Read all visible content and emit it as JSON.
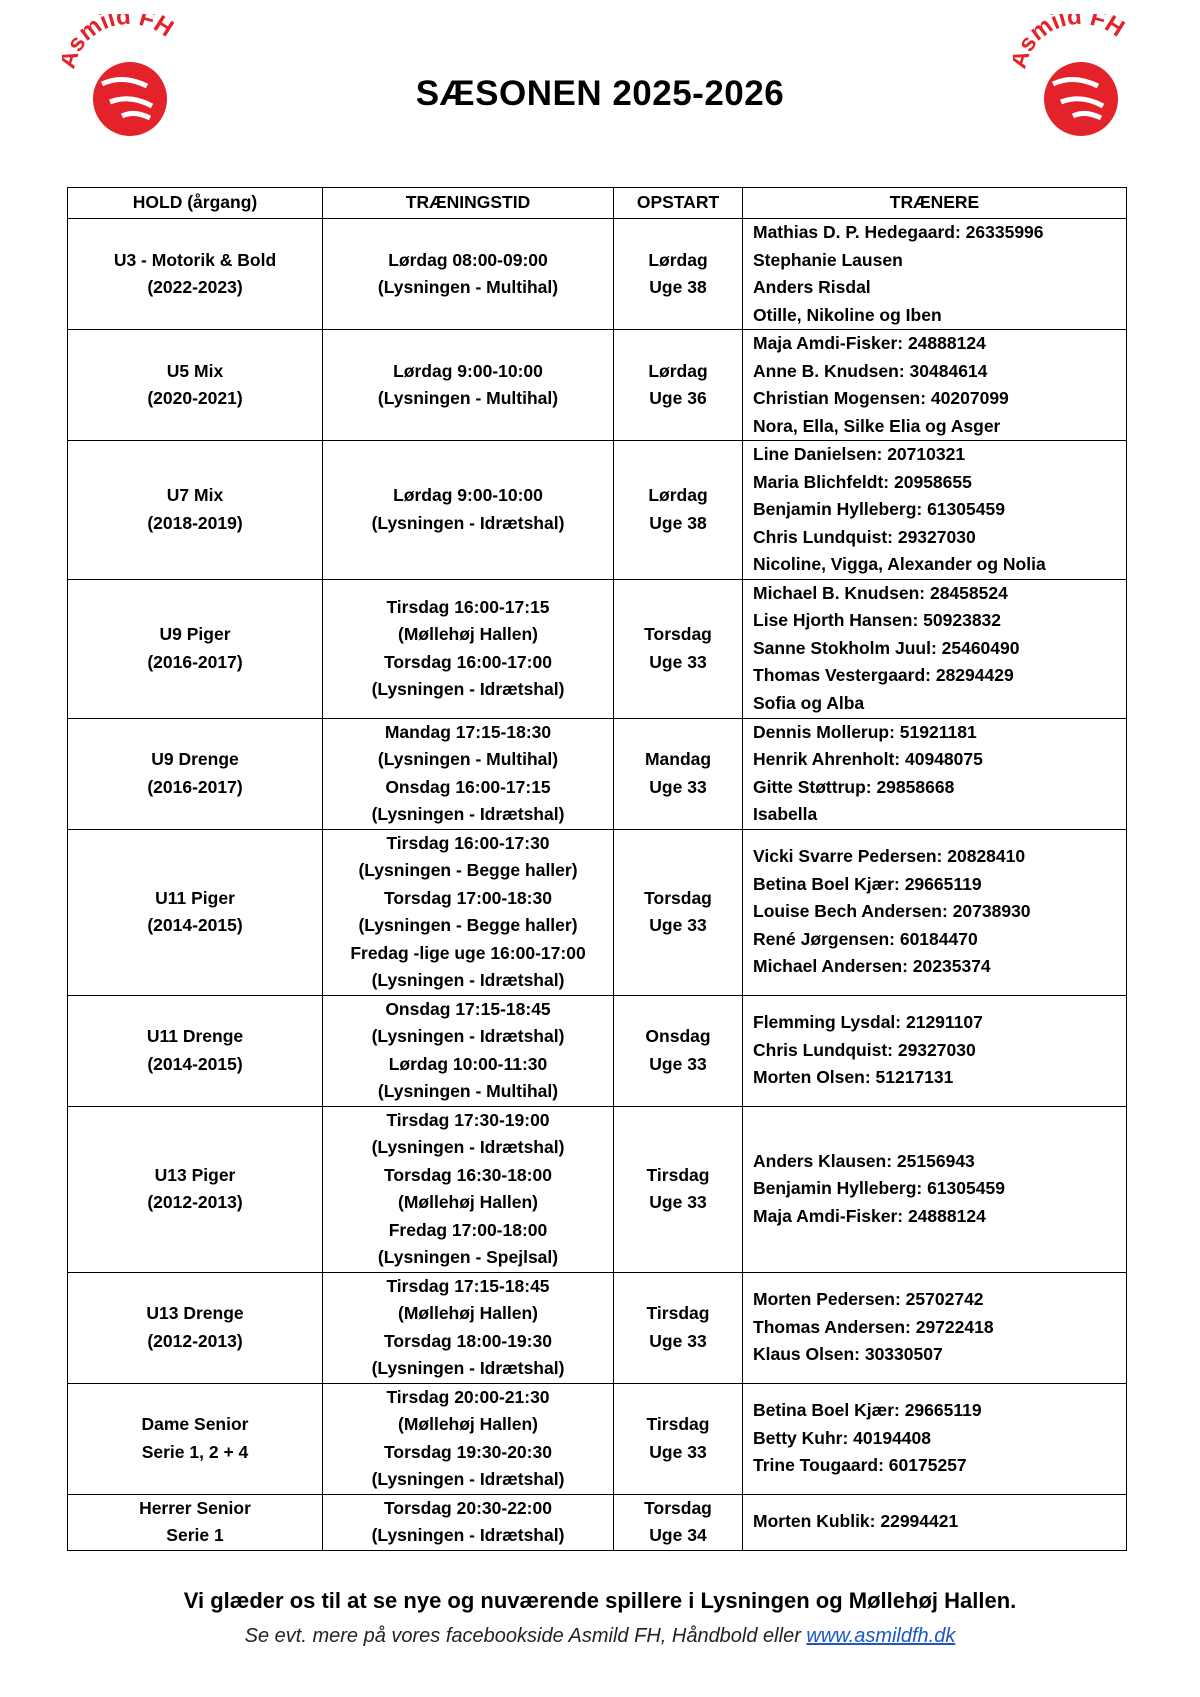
{
  "logo": {
    "text": "Asmild FH",
    "color": "#e3222a"
  },
  "title": "SÆSONEN 2025-2026",
  "table": {
    "headers": [
      "HOLD (årgang)",
      "TRÆNINGSTID",
      "OPSTART",
      "TRÆNERE"
    ],
    "rows": [
      {
        "team": [
          "U3 - Motorik & Bold",
          "(2022-2023)"
        ],
        "times": [
          "Lørdag 08:00-09:00",
          "(Lysningen - Multihal)"
        ],
        "start": [
          "Lørdag",
          "Uge 38"
        ],
        "coaches": [
          "Mathias D. P. Hedegaard: 26335996",
          "Stephanie Lausen",
          "Anders Risdal",
          "Otille, Nikoline og Iben"
        ]
      },
      {
        "team": [
          "U5 Mix",
          "(2020-2021)"
        ],
        "times": [
          "Lørdag 9:00-10:00",
          "(Lysningen - Multihal)"
        ],
        "start": [
          "Lørdag",
          "Uge 36"
        ],
        "coaches": [
          "Maja Amdi-Fisker: 24888124",
          "Anne B. Knudsen: 30484614",
          "Christian Mogensen: 40207099",
          "Nora, Ella, Silke Elia og Asger"
        ]
      },
      {
        "team": [
          "U7 Mix",
          "(2018-2019)"
        ],
        "times": [
          "Lørdag 9:00-10:00",
          "(Lysningen - Idrætshal)"
        ],
        "start": [
          "Lørdag",
          "Uge 38"
        ],
        "coaches": [
          "Line Danielsen: 20710321",
          "Maria Blichfeldt: 20958655",
          "Benjamin Hylleberg: 61305459",
          "Chris Lundquist: 29327030",
          "Nicoline, Vigga, Alexander og Nolia"
        ]
      },
      {
        "team": [
          "U9 Piger",
          "(2016-2017)"
        ],
        "times": [
          "Tirsdag 16:00-17:15",
          "(Møllehøj Hallen)",
          "Torsdag 16:00-17:00",
          "(Lysningen - Idrætshal)"
        ],
        "start": [
          "Torsdag",
          "Uge 33"
        ],
        "coaches": [
          "Michael B. Knudsen: 28458524",
          "Lise Hjorth Hansen: 50923832",
          "Sanne Stokholm Juul: 25460490",
          "Thomas Vestergaard: 28294429",
          "Sofia og Alba"
        ]
      },
      {
        "team": [
          "U9 Drenge",
          "(2016-2017)"
        ],
        "times": [
          "Mandag 17:15-18:30",
          "(Lysningen - Multihal)",
          "Onsdag 16:00-17:15",
          "(Lysningen - Idrætshal)"
        ],
        "start": [
          "Mandag",
          "Uge 33"
        ],
        "coaches": [
          "Dennis Mollerup: 51921181",
          "Henrik Ahrenholt: 40948075",
          "Gitte Støttrup: 29858668",
          "Isabella"
        ]
      },
      {
        "team": [
          "U11 Piger",
          "(2014-2015)"
        ],
        "times": [
          "Tirsdag 16:00-17:30",
          "(Lysningen - Begge haller)",
          "Torsdag 17:00-18:30",
          "(Lysningen - Begge haller)",
          "Fredag -lige uge 16:00-17:00",
          "(Lysningen - Idrætshal)"
        ],
        "start": [
          "Torsdag",
          "Uge 33"
        ],
        "coaches": [
          "Vicki Svarre Pedersen: 20828410",
          "Betina Boel Kjær: 29665119",
          "Louise Bech Andersen: 20738930",
          "René Jørgensen: 60184470",
          "Michael Andersen: 20235374"
        ]
      },
      {
        "team": [
          "U11 Drenge",
          "(2014-2015)"
        ],
        "times": [
          "Onsdag 17:15-18:45",
          "(Lysningen - Idrætshal)",
          "Lørdag 10:00-11:30",
          "(Lysningen - Multihal)"
        ],
        "start": [
          "Onsdag",
          "Uge 33"
        ],
        "coaches": [
          "Flemming Lysdal: 21291107",
          "Chris Lundquist: 29327030",
          "Morten Olsen: 51217131"
        ]
      },
      {
        "team": [
          "U13 Piger",
          "(2012-2013)"
        ],
        "times": [
          "Tirsdag 17:30-19:00",
          "(Lysningen - Idrætshal)",
          "Torsdag 16:30-18:00",
          "(Møllehøj Hallen)",
          "Fredag 17:00-18:00",
          "(Lysningen - Spejlsal)"
        ],
        "start": [
          "Tirsdag",
          "Uge 33"
        ],
        "coaches": [
          "Anders Klausen: 25156943",
          "Benjamin Hylleberg: 61305459",
          "Maja Amdi-Fisker: 24888124"
        ]
      },
      {
        "team": [
          "U13 Drenge",
          "(2012-2013)"
        ],
        "times": [
          "Tirsdag 17:15-18:45",
          "(Møllehøj Hallen)",
          "Torsdag 18:00-19:30",
          "(Lysningen - Idrætshal)"
        ],
        "start": [
          "Tirsdag",
          "Uge 33"
        ],
        "coaches": [
          "Morten Pedersen: 25702742",
          "Thomas Andersen: 29722418",
          "Klaus Olsen: 30330507"
        ]
      },
      {
        "team": [
          "Dame Senior",
          "Serie 1, 2 + 4"
        ],
        "times": [
          "Tirsdag 20:00-21:30",
          "(Møllehøj Hallen)",
          "Torsdag 19:30-20:30",
          "(Lysningen - Idrætshal)"
        ],
        "start": [
          "Tirsdag",
          "Uge 33"
        ],
        "coaches": [
          "Betina Boel Kjær: 29665119",
          "Betty Kuhr: 40194408",
          "Trine Tougaard: 60175257"
        ]
      },
      {
        "team": [
          "Herrer Senior",
          "Serie 1"
        ],
        "times": [
          "Torsdag 20:30-22:00",
          "(Lysningen - Idrætshal)"
        ],
        "start": [
          "Torsdag",
          "Uge 34"
        ],
        "coaches": [
          "Morten Kublik:  22994421"
        ]
      }
    ]
  },
  "footer": {
    "main": "Vi glæder os til at se nye og nuværende spillere i Lysningen og Møllehøj Hallen.",
    "sub": "Se evt. mere på vores facebookside Asmild FH, Håndbold eller ",
    "link": "www.asmildfh.dk",
    "link_color": "#1a56c4"
  }
}
